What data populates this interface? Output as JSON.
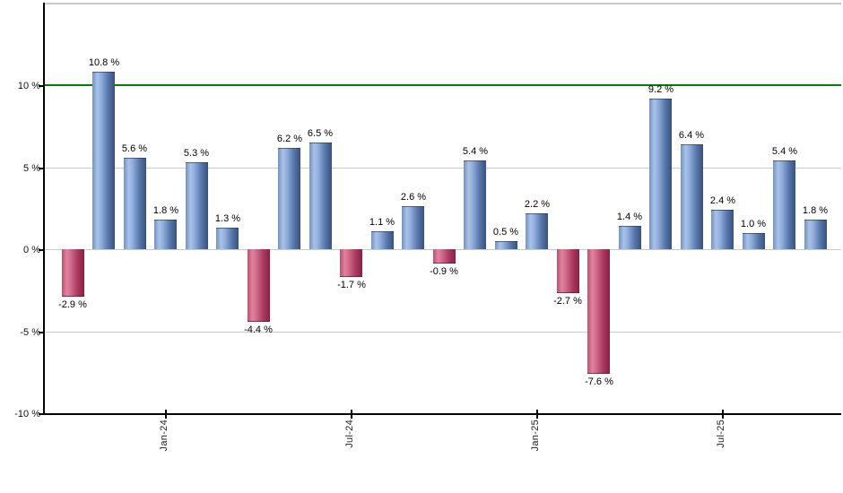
{
  "chart_data": {
    "type": "bar",
    "title": "",
    "unit": "%",
    "values": [
      -2.9,
      10.8,
      5.6,
      1.8,
      5.3,
      1.3,
      -4.4,
      6.2,
      6.5,
      -1.7,
      1.1,
      2.6,
      -0.9,
      5.4,
      0.5,
      2.2,
      -2.7,
      -7.6,
      1.4,
      9.2,
      6.4,
      2.4,
      1.0,
      5.4,
      1.8
    ],
    "bar_labels": [
      "-2.9 %",
      "10.8 %",
      "5.6 %",
      "1.8 %",
      "5.3 %",
      "1.3 %",
      "-4.4 %",
      "6.2 %",
      "6.5 %",
      "-1.7 %",
      "1.1 %",
      "2.6 %",
      "-0.9 %",
      "5.4 %",
      "0.5 %",
      "2.2 %",
      "-2.7 %",
      "-7.6 %",
      "1.4 %",
      "9.2 %",
      "6.4 %",
      "2.4 %",
      "1.0 %",
      "5.4 %",
      "1.8 %"
    ],
    "x_tick_labels": [
      {
        "bar_index": 3,
        "label": "Jan-24"
      },
      {
        "bar_index": 9,
        "label": "Jul-24"
      },
      {
        "bar_index": 15,
        "label": "Jan-25"
      },
      {
        "bar_index": 21,
        "label": "Jul-25"
      }
    ],
    "y_ticks": [
      {
        "value": 10,
        "label": "10 %"
      },
      {
        "value": 5,
        "label": "5 %"
      },
      {
        "value": 0,
        "label": "0 %"
      },
      {
        "value": -5,
        "label": "-5 %"
      },
      {
        "value": -10,
        "label": "-10 %"
      }
    ],
    "gridline_values": [
      5,
      0,
      -5
    ],
    "reference_line": {
      "value": 10,
      "color": "#008000"
    },
    "ylim": [
      -10,
      15
    ],
    "grid": true,
    "legend": "none",
    "colors": {
      "positive_bar_gradient": [
        "#7292c4",
        "#a9c3e9",
        "#8fadd9",
        "#5877ab",
        "#37527e"
      ],
      "negative_bar_gradient": [
        "#c04c6e",
        "#e084a0",
        "#d06a8a",
        "#a93a60",
        "#8c1f44"
      ],
      "gridline": "#c9c9c9",
      "plot_top_border": "#c9c9c9",
      "axis": "#000000",
      "text": "#000000",
      "background": "#ffffff"
    }
  }
}
